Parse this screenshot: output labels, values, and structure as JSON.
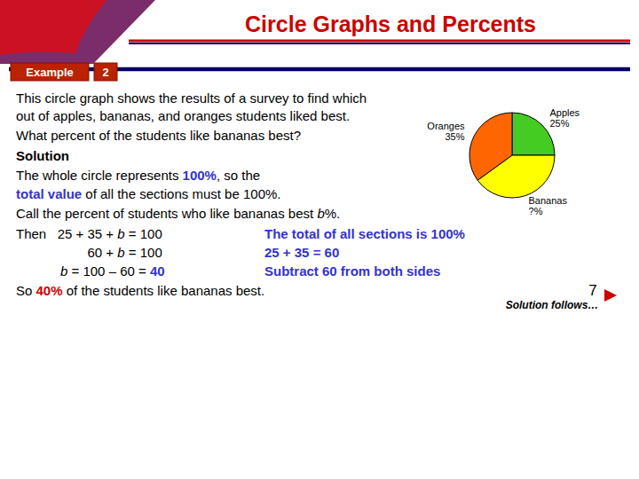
{
  "chart_data": {
    "type": "pie",
    "title": "Circle Graphs and Percents",
    "categories": [
      "Apples\n25%",
      "Bananas\n?%",
      "Oranges\n35%"
    ],
    "values": [
      25,
      40,
      35
    ],
    "colors": [
      "#44CC22",
      "#FFFF00",
      "#FF6600"
    ],
    "annotations": [
      [
        "Example"
      ],
      [
        "2"
      ],
      [
        "This circle graph shows the results of a survey to find which"
      ],
      [
        "out of apples, bananas, and oranges students liked best."
      ],
      [
        "What percent of the students like bananas best?"
      ],
      [
        "Solution"
      ],
      [
        "The whole circle represents ",
        "100%",
        ", so the"
      ],
      [
        "total value",
        " of all the sections must be 100%."
      ],
      [
        "Call the percent of students who like bananas best ",
        "b",
        "%."
      ],
      [
        "Then   25 + 35 + ",
        "b",
        " = 100",
        "The total of all sections is 100%"
      ],
      [
        "60 + ",
        "b",
        " = 100",
        "25 + 35 = 60"
      ],
      [
        "b",
        " = 100 – 60 = ",
        "40",
        "Subtract 60 from both sides"
      ],
      [
        "So ",
        "40%",
        " of the students like bananas best."
      ],
      [
        "7"
      ],
      [
        "Solution follows…"
      ]
    ]
  }
}
